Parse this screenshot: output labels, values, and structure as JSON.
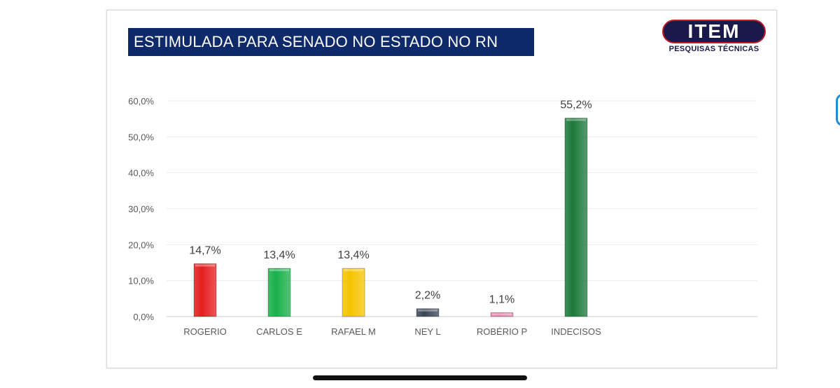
{
  "header": {
    "title": "ESTIMULADA PARA SENADO NO ESTADO NO RN"
  },
  "logo": {
    "name": "ITEM",
    "subtitle": "PESQUISAS TÉCNICAS"
  },
  "chart_data": {
    "type": "bar",
    "title": "ESTIMULADA PARA SENADO NO ESTADO NO RN",
    "xlabel": "",
    "ylabel": "",
    "categories": [
      "ROGERIO",
      "CARLOS E",
      "RAFAEL M",
      "NEY L",
      "ROBÉRIO P",
      "INDECISOS"
    ],
    "values": [
      14.7,
      13.4,
      13.4,
      2.2,
      1.1,
      55.2
    ],
    "value_labels": [
      "14,7%",
      "13,4%",
      "13,4%",
      "2,2%",
      "1,1%",
      "55,2%"
    ],
    "colors": [
      "#e41e1e",
      "#19b04b",
      "#f5c400",
      "#3a4656",
      "#e27aa3",
      "#1c7a3a"
    ],
    "ylim": [
      0,
      60
    ],
    "yticks": [
      0,
      10,
      20,
      30,
      40,
      50,
      60
    ],
    "ytick_labels": [
      "0,0%",
      "10,0%",
      "20,0%",
      "30,0%",
      "40,0%",
      "50,0%",
      "60,0%"
    ],
    "grid": true,
    "legend": "none"
  }
}
